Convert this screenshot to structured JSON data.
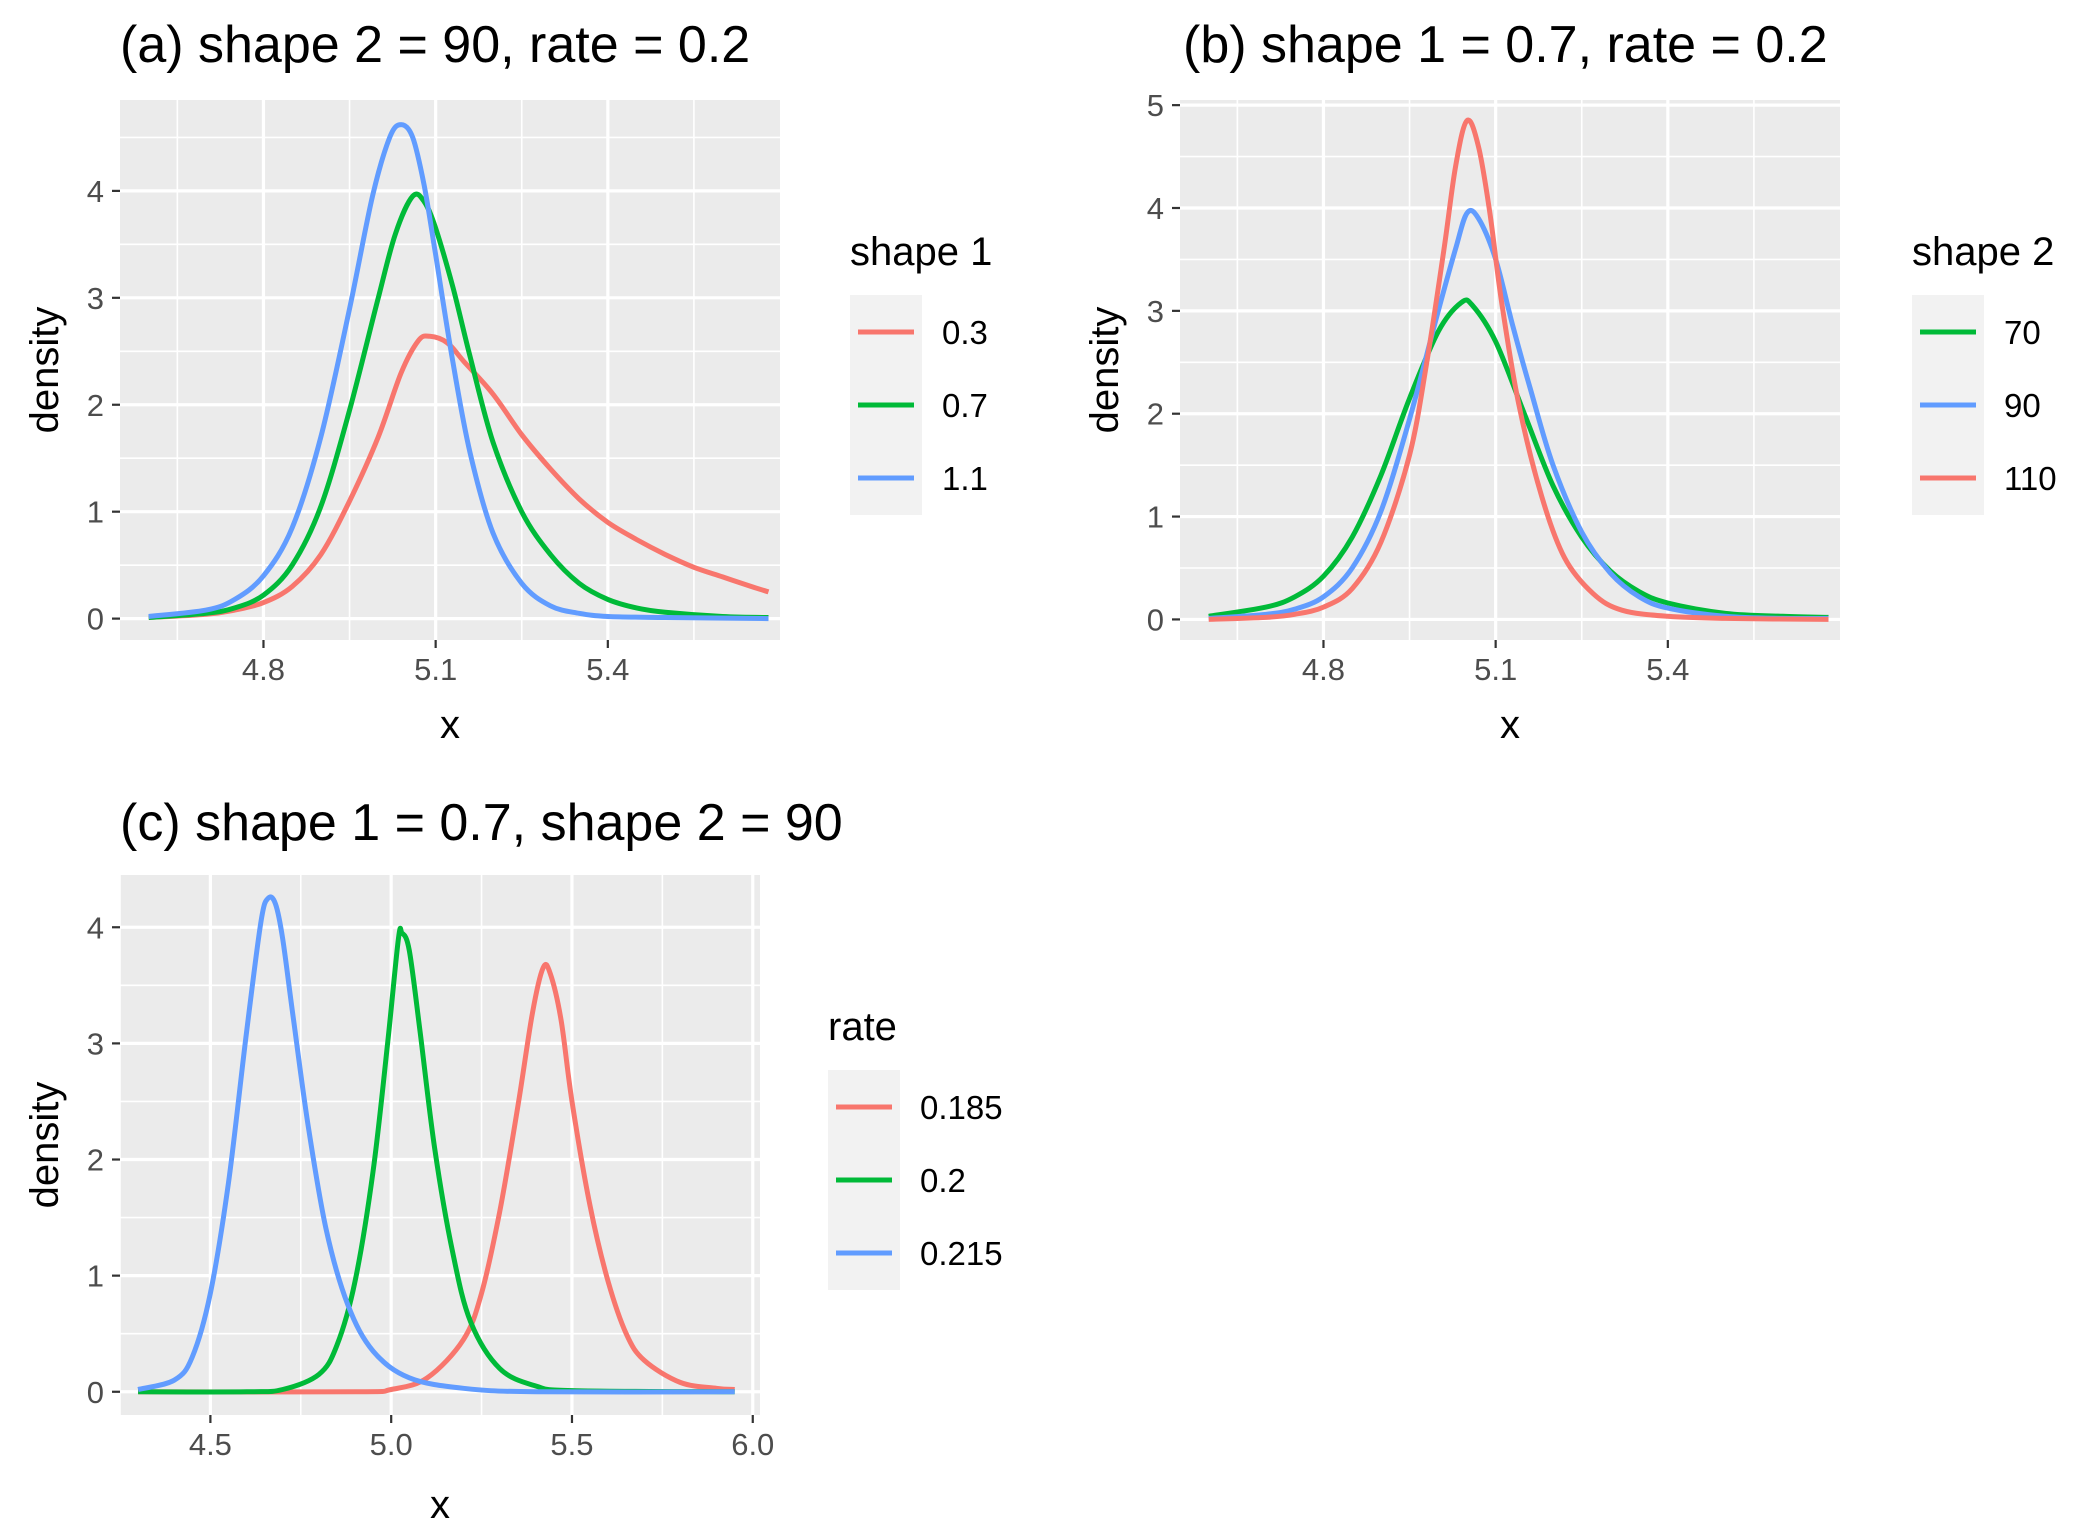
{
  "chart_data": [
    {
      "type": "line",
      "title": "(a) shape 2 = 90, rate = 0.2",
      "xlabel": "x",
      "ylabel": "density",
      "xlim": [
        4.55,
        5.7
      ],
      "ylim": [
        -0.2,
        4.85
      ],
      "x_ticks": [
        {
          "value": 4.8,
          "label": "4.8"
        },
        {
          "value": 5.1,
          "label": "5.1"
        },
        {
          "value": 5.4,
          "label": "5.4"
        }
      ],
      "y_ticks": [
        {
          "value": 0,
          "label": "0"
        },
        {
          "value": 1,
          "label": "1"
        },
        {
          "value": 2,
          "label": "2"
        },
        {
          "value": 3,
          "label": "3"
        },
        {
          "value": 4,
          "label": "4"
        }
      ],
      "legend": {
        "title": "shape 1",
        "position": "right"
      },
      "series": [
        {
          "name": "0.3",
          "color": "#F8766D",
          "points": [
            [
              4.6,
              0.01
            ],
            [
              4.7,
              0.04
            ],
            [
              4.75,
              0.08
            ],
            [
              4.8,
              0.15
            ],
            [
              4.85,
              0.3
            ],
            [
              4.9,
              0.6
            ],
            [
              4.95,
              1.1
            ],
            [
              5.0,
              1.7
            ],
            [
              5.04,
              2.3
            ],
            [
              5.07,
              2.6
            ],
            [
              5.09,
              2.64
            ],
            [
              5.12,
              2.58
            ],
            [
              5.15,
              2.4
            ],
            [
              5.2,
              2.1
            ],
            [
              5.25,
              1.72
            ],
            [
              5.3,
              1.4
            ],
            [
              5.35,
              1.12
            ],
            [
              5.4,
              0.9
            ],
            [
              5.45,
              0.74
            ],
            [
              5.5,
              0.6
            ],
            [
              5.55,
              0.48
            ],
            [
              5.6,
              0.39
            ],
            [
              5.65,
              0.3
            ],
            [
              5.68,
              0.25
            ]
          ]
        },
        {
          "name": "0.7",
          "color": "#00BA38",
          "points": [
            [
              4.6,
              0.01
            ],
            [
              4.7,
              0.05
            ],
            [
              4.75,
              0.1
            ],
            [
              4.8,
              0.22
            ],
            [
              4.85,
              0.5
            ],
            [
              4.9,
              1.05
            ],
            [
              4.95,
              1.95
            ],
            [
              5.0,
              3.0
            ],
            [
              5.03,
              3.6
            ],
            [
              5.06,
              3.95
            ],
            [
              5.08,
              3.9
            ],
            [
              5.1,
              3.65
            ],
            [
              5.13,
              3.1
            ],
            [
              5.16,
              2.45
            ],
            [
              5.2,
              1.65
            ],
            [
              5.25,
              1.0
            ],
            [
              5.3,
              0.6
            ],
            [
              5.35,
              0.33
            ],
            [
              5.4,
              0.18
            ],
            [
              5.45,
              0.1
            ],
            [
              5.5,
              0.06
            ],
            [
              5.6,
              0.02
            ],
            [
              5.68,
              0.01
            ]
          ]
        },
        {
          "name": "1.1",
          "color": "#619CFF",
          "points": [
            [
              4.6,
              0.02
            ],
            [
              4.7,
              0.08
            ],
            [
              4.75,
              0.18
            ],
            [
              4.8,
              0.4
            ],
            [
              4.85,
              0.85
            ],
            [
              4.9,
              1.7
            ],
            [
              4.95,
              2.9
            ],
            [
              4.99,
              3.95
            ],
            [
              5.02,
              4.5
            ],
            [
              5.04,
              4.62
            ],
            [
              5.06,
              4.5
            ],
            [
              5.08,
              4.05
            ],
            [
              5.1,
              3.4
            ],
            [
              5.13,
              2.4
            ],
            [
              5.16,
              1.55
            ],
            [
              5.2,
              0.8
            ],
            [
              5.25,
              0.33
            ],
            [
              5.3,
              0.12
            ],
            [
              5.35,
              0.05
            ],
            [
              5.4,
              0.02
            ],
            [
              5.5,
              0.01
            ],
            [
              5.68,
              0.0
            ]
          ]
        }
      ]
    },
    {
      "type": "line",
      "title": "(b) shape 1 = 0.7, rate = 0.2",
      "xlabel": "x",
      "ylabel": "density",
      "xlim": [
        4.55,
        5.7
      ],
      "ylim": [
        -0.2,
        5.05
      ],
      "x_ticks": [
        {
          "value": 4.8,
          "label": "4.8"
        },
        {
          "value": 5.1,
          "label": "5.1"
        },
        {
          "value": 5.4,
          "label": "5.4"
        }
      ],
      "y_ticks": [
        {
          "value": 0,
          "label": "0"
        },
        {
          "value": 1,
          "label": "1"
        },
        {
          "value": 2,
          "label": "2"
        },
        {
          "value": 3,
          "label": "3"
        },
        {
          "value": 4,
          "label": "4"
        },
        {
          "value": 5,
          "label": "5"
        }
      ],
      "legend": {
        "title": "shape 2",
        "position": "right"
      },
      "series": [
        {
          "name": "70",
          "color": "#00BA38",
          "points": [
            [
              4.6,
              0.03
            ],
            [
              4.7,
              0.12
            ],
            [
              4.75,
              0.22
            ],
            [
              4.8,
              0.42
            ],
            [
              4.85,
              0.8
            ],
            [
              4.9,
              1.4
            ],
            [
              4.95,
              2.15
            ],
            [
              5.0,
              2.8
            ],
            [
              5.04,
              3.08
            ],
            [
              5.06,
              3.05
            ],
            [
              5.1,
              2.7
            ],
            [
              5.15,
              2.0
            ],
            [
              5.2,
              1.3
            ],
            [
              5.25,
              0.8
            ],
            [
              5.3,
              0.47
            ],
            [
              5.35,
              0.27
            ],
            [
              5.4,
              0.16
            ],
            [
              5.5,
              0.06
            ],
            [
              5.6,
              0.03
            ],
            [
              5.68,
              0.02
            ]
          ]
        },
        {
          "name": "90",
          "color": "#619CFF",
          "points": [
            [
              4.6,
              0.01
            ],
            [
              4.7,
              0.05
            ],
            [
              4.75,
              0.1
            ],
            [
              4.8,
              0.22
            ],
            [
              4.85,
              0.5
            ],
            [
              4.9,
              1.05
            ],
            [
              4.95,
              1.95
            ],
            [
              5.0,
              3.0
            ],
            [
              5.03,
              3.6
            ],
            [
              5.05,
              3.95
            ],
            [
              5.07,
              3.9
            ],
            [
              5.1,
              3.5
            ],
            [
              5.13,
              2.85
            ],
            [
              5.16,
              2.25
            ],
            [
              5.2,
              1.5
            ],
            [
              5.25,
              0.85
            ],
            [
              5.3,
              0.45
            ],
            [
              5.35,
              0.22
            ],
            [
              5.4,
              0.11
            ],
            [
              5.5,
              0.03
            ],
            [
              5.6,
              0.01
            ],
            [
              5.68,
              0.01
            ]
          ]
        },
        {
          "name": "110",
          "color": "#F8766D",
          "points": [
            [
              4.6,
              0.0
            ],
            [
              4.7,
              0.02
            ],
            [
              4.75,
              0.05
            ],
            [
              4.8,
              0.12
            ],
            [
              4.85,
              0.3
            ],
            [
              4.9,
              0.75
            ],
            [
              4.95,
              1.6
            ],
            [
              4.98,
              2.5
            ],
            [
              5.01,
              3.6
            ],
            [
              5.03,
              4.4
            ],
            [
              5.05,
              4.85
            ],
            [
              5.07,
              4.6
            ],
            [
              5.09,
              3.95
            ],
            [
              5.11,
              3.1
            ],
            [
              5.14,
              2.1
            ],
            [
              5.18,
              1.2
            ],
            [
              5.22,
              0.6
            ],
            [
              5.27,
              0.25
            ],
            [
              5.32,
              0.09
            ],
            [
              5.4,
              0.03
            ],
            [
              5.5,
              0.01
            ],
            [
              5.68,
              0.0
            ]
          ]
        }
      ]
    },
    {
      "type": "line",
      "title": "(c) shape 1 = 0.7, shape 2 = 90",
      "xlabel": "x",
      "ylabel": "density",
      "xlim": [
        4.25,
        6.02
      ],
      "ylim": [
        -0.2,
        4.45
      ],
      "x_ticks": [
        {
          "value": 4.5,
          "label": "4.5"
        },
        {
          "value": 5.0,
          "label": "5.0"
        },
        {
          "value": 5.5,
          "label": "5.5"
        },
        {
          "value": 6.0,
          "label": "6.0"
        }
      ],
      "y_ticks": [
        {
          "value": 0,
          "label": "0"
        },
        {
          "value": 1,
          "label": "1"
        },
        {
          "value": 2,
          "label": "2"
        },
        {
          "value": 3,
          "label": "3"
        },
        {
          "value": 4,
          "label": "4"
        }
      ],
      "legend": {
        "title": "rate",
        "position": "right"
      },
      "series": [
        {
          "name": "0.185",
          "color": "#F8766D",
          "points": [
            [
              4.3,
              0.0
            ],
            [
              4.9,
              0.0
            ],
            [
              5.0,
              0.02
            ],
            [
              5.1,
              0.12
            ],
            [
              5.2,
              0.45
            ],
            [
              5.25,
              0.85
            ],
            [
              5.3,
              1.55
            ],
            [
              5.35,
              2.45
            ],
            [
              5.39,
              3.25
            ],
            [
              5.42,
              3.65
            ],
            [
              5.44,
              3.6
            ],
            [
              5.47,
              3.2
            ],
            [
              5.5,
              2.5
            ],
            [
              5.55,
              1.6
            ],
            [
              5.6,
              0.95
            ],
            [
              5.65,
              0.5
            ],
            [
              5.7,
              0.27
            ],
            [
              5.8,
              0.08
            ],
            [
              5.9,
              0.03
            ],
            [
              5.95,
              0.02
            ]
          ]
        },
        {
          "name": "0.2",
          "color": "#00BA38",
          "points": [
            [
              4.3,
              0.0
            ],
            [
              4.6,
              0.0
            ],
            [
              4.7,
              0.02
            ],
            [
              4.8,
              0.15
            ],
            [
              4.85,
              0.4
            ],
            [
              4.9,
              0.95
            ],
            [
              4.95,
              1.9
            ],
            [
              4.99,
              3.0
            ],
            [
              5.02,
              3.9
            ],
            [
              5.03,
              3.95
            ],
            [
              5.05,
              3.8
            ],
            [
              5.08,
              3.1
            ],
            [
              5.12,
              2.1
            ],
            [
              5.17,
              1.2
            ],
            [
              5.22,
              0.6
            ],
            [
              5.3,
              0.2
            ],
            [
              5.4,
              0.05
            ],
            [
              5.5,
              0.01
            ],
            [
              5.95,
              0.0
            ]
          ]
        },
        {
          "name": "0.215",
          "color": "#619CFF",
          "points": [
            [
              4.3,
              0.02
            ],
            [
              4.4,
              0.1
            ],
            [
              4.45,
              0.3
            ],
            [
              4.5,
              0.85
            ],
            [
              4.55,
              1.8
            ],
            [
              4.6,
              3.1
            ],
            [
              4.64,
              4.05
            ],
            [
              4.66,
              4.25
            ],
            [
              4.68,
              4.2
            ],
            [
              4.7,
              3.9
            ],
            [
              4.73,
              3.2
            ],
            [
              4.77,
              2.3
            ],
            [
              4.82,
              1.4
            ],
            [
              4.88,
              0.75
            ],
            [
              4.95,
              0.35
            ],
            [
              5.05,
              0.12
            ],
            [
              5.2,
              0.03
            ],
            [
              5.4,
              0.0
            ],
            [
              5.95,
              0.0
            ]
          ]
        }
      ]
    }
  ]
}
